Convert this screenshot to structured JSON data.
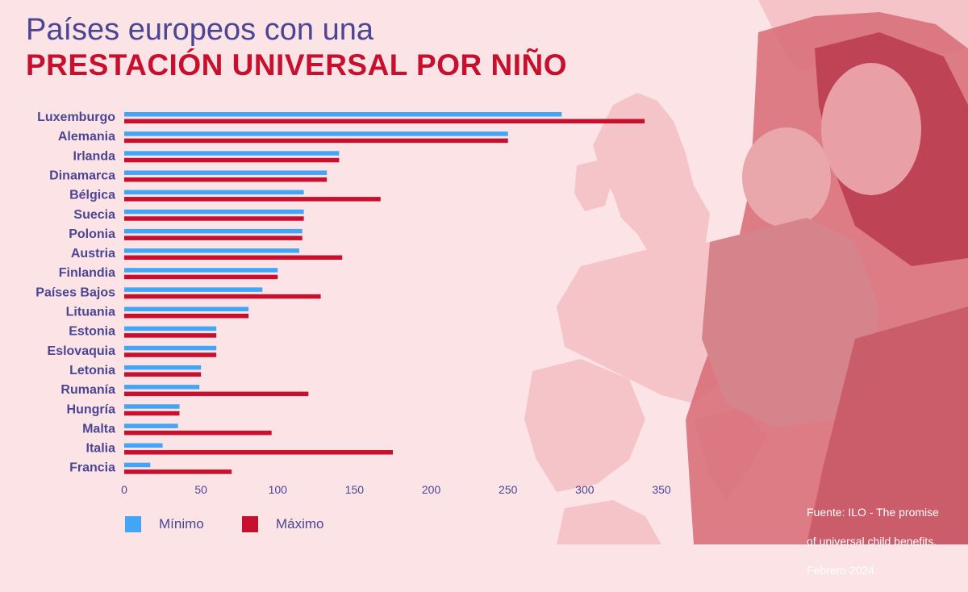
{
  "title": {
    "line1": "Países europeos con una",
    "line2": "PRESTACIÓN UNIVERSAL POR NIÑO"
  },
  "colors": {
    "background": "#fce4e6",
    "title_primary": "#4b4594",
    "title_accent": "#c8102e",
    "min_series": "#42a5f5",
    "max_series": "#c8102e",
    "axis_text": "#4b4594"
  },
  "legend": {
    "min_label": "Mínimo",
    "max_label": "Máximo",
    "placement": "bottom-left"
  },
  "source": {
    "line1": "Fuente: ILO - The promise",
    "line2": "of universal child benefits.",
    "line3": "Febrero 2024"
  },
  "background_image": "map of Europe with mother holding baby photo",
  "chart_data": {
    "type": "bar",
    "orientation": "horizontal",
    "categories": [
      "Luxemburgo",
      "Alemania",
      "Irlanda",
      "Dinamarca",
      "Bélgica",
      "Suecia",
      "Polonia",
      "Austria",
      "Finlandia",
      "Países Bajos",
      "Lituania",
      "Estonia",
      "Eslovaquia",
      "Letonia",
      "Rumanía",
      "Hungría",
      "Malta",
      "Italia",
      "Francia"
    ],
    "series": [
      {
        "name": "Mínimo",
        "values": [
          285,
          250,
          140,
          132,
          117,
          117,
          116,
          114,
          100,
          90,
          81,
          60,
          60,
          50,
          49,
          36,
          35,
          25,
          17
        ]
      },
      {
        "name": "Máximo",
        "values": [
          339,
          250,
          140,
          132,
          167,
          117,
          116,
          142,
          100,
          128,
          81,
          60,
          60,
          50,
          120,
          36,
          96,
          175,
          70
        ]
      }
    ],
    "xticks": [
      0,
      50,
      100,
      150,
      200,
      250,
      300,
      350
    ],
    "xlim": [
      0,
      350
    ],
    "grid": false
  }
}
